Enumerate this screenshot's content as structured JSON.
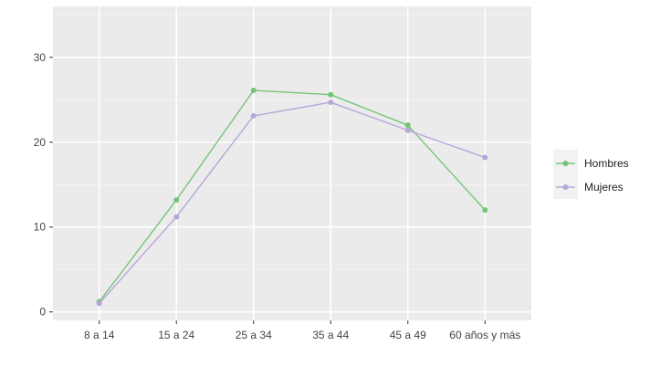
{
  "chart_data": {
    "type": "line",
    "categories": [
      "8 a 14",
      "15 a 24",
      "25 a 34",
      "35 a 44",
      "45 a 49",
      "60 años y más"
    ],
    "series": [
      {
        "name": "Hombres",
        "color": "#74c476",
        "values": [
          1.2,
          13.2,
          26.1,
          25.6,
          22.0,
          12.0
        ]
      },
      {
        "name": "Mujeres",
        "color": "#b5a7d8",
        "values": [
          1.0,
          11.2,
          23.1,
          24.7,
          21.4,
          18.2
        ]
      }
    ],
    "yticks": [
      0,
      10,
      20,
      30
    ],
    "ylim": [
      -1,
      36
    ],
    "xlabel": "",
    "ylabel": "",
    "title": "",
    "grid": true,
    "legend_position": "right",
    "panel_background": "#ebebeb"
  }
}
